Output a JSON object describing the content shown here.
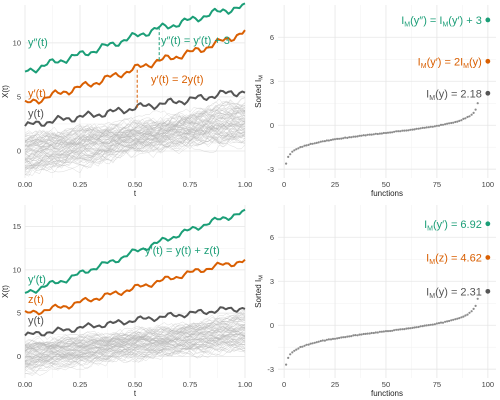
{
  "colors": {
    "green": "#1b9e77",
    "orange": "#d95f02",
    "dark": "#555555",
    "gray_curves": "#b5b5b5",
    "sorted_points": "#8c8c8c"
  },
  "chart_data": [
    {
      "id": "top-left",
      "type": "line",
      "xlabel": "t",
      "ylabel": "X(t)",
      "xlim": [
        0,
        1
      ],
      "ylim": [
        -2.5,
        13.5
      ],
      "x_ticks": [
        "0.00",
        "0.25",
        "0.50",
        "0.75",
        "1.00"
      ],
      "y_ticks": [
        "0",
        "5",
        "10"
      ],
      "grid": true,
      "series": [
        {
          "name": "y(t)",
          "color": "#555555",
          "points": [
            [
              0,
              2.3
            ],
            [
              0.1,
              2.7
            ],
            [
              0.2,
              3.0
            ],
            [
              0.3,
              3.3
            ],
            [
              0.4,
              3.6
            ],
            [
              0.5,
              4.0
            ],
            [
              0.6,
              4.3
            ],
            [
              0.7,
              4.6
            ],
            [
              0.8,
              4.9
            ],
            [
              0.9,
              5.3
            ],
            [
              1.0,
              5.5
            ]
          ]
        },
        {
          "name": "y′(t)",
          "color": "#d95f02",
          "points": [
            [
              0,
              4.3
            ],
            [
              0.1,
              5.0
            ],
            [
              0.2,
              5.6
            ],
            [
              0.3,
              6.2
            ],
            [
              0.4,
              6.9
            ],
            [
              0.5,
              7.6
            ],
            [
              0.6,
              8.3
            ],
            [
              0.7,
              8.8
            ],
            [
              0.8,
              9.4
            ],
            [
              0.9,
              10.2
            ],
            [
              1.0,
              11.0
            ]
          ]
        },
        {
          "name": "y″(t)",
          "color": "#1b9e77",
          "points": [
            [
              0,
              7.3
            ],
            [
              0.1,
              8.0
            ],
            [
              0.2,
              8.6
            ],
            [
              0.3,
              9.2
            ],
            [
              0.4,
              9.9
            ],
            [
              0.5,
              10.6
            ],
            [
              0.6,
              11.3
            ],
            [
              0.7,
              11.8
            ],
            [
              0.8,
              12.4
            ],
            [
              0.9,
              13.0
            ],
            [
              1.0,
              13.3
            ]
          ]
        }
      ],
      "background_curves": {
        "count": 80,
        "start_range": [
          -2.0,
          1.5
        ],
        "end_range": [
          1.0,
          4.5
        ]
      },
      "annotations": [
        {
          "label_parts": [
            "y″(t)"
          ],
          "color": "#1b9e77",
          "role": "series-label"
        },
        {
          "label_parts": [
            "y′(t)"
          ],
          "color": "#d95f02",
          "role": "series-label"
        },
        {
          "label_parts": [
            "y(t)"
          ],
          "color": "#555555",
          "role": "series-label"
        },
        {
          "label_parts": [
            "y″(t) = y′(t) + 3"
          ],
          "color": "#1b9e77",
          "role": "relation"
        },
        {
          "label_parts": [
            "y′(t) = 2y(t)"
          ],
          "color": "#d95f02",
          "role": "relation"
        }
      ],
      "dashed_markers": [
        {
          "x": 0.61,
          "y_from": 8.4,
          "y_to": 11.4,
          "color": "#1b9e77"
        },
        {
          "x": 0.51,
          "y_from": 4.0,
          "y_to": 7.6,
          "color": "#d95f02"
        }
      ]
    },
    {
      "id": "top-right",
      "type": "scatter",
      "xlabel": "functions",
      "ylabel": "Sorted I_M",
      "xlim": [
        -3,
        104
      ],
      "ylim": [
        -3.6,
        8.2
      ],
      "x_ticks": [
        "0",
        "25",
        "50",
        "75",
        "100"
      ],
      "y_ticks": [
        "-3",
        "0",
        "3",
        "6"
      ],
      "grid": true,
      "sorted_curve": {
        "n": 95,
        "min": -2.6,
        "max": 1.5
      },
      "highlighted_points": [
        {
          "x": 100,
          "y": 7.18,
          "color": "#1b9e77",
          "label_parts": [
            "I",
            "M",
            "(y″) = I",
            "M",
            "(y′) + 3"
          ]
        },
        {
          "x": 100,
          "y": 4.36,
          "color": "#d95f02",
          "label_parts": [
            "I",
            "M",
            "(y′) = 2I",
            "M",
            "(y)"
          ]
        },
        {
          "x": 100,
          "y": 2.18,
          "color": "#555555",
          "label_parts": [
            "I",
            "M",
            "(y) = 2.18"
          ]
        }
      ]
    },
    {
      "id": "bottom-left",
      "type": "line",
      "xlabel": "t",
      "ylabel": "X(t)",
      "xlim": [
        0,
        1
      ],
      "ylim": [
        -2.5,
        17.5
      ],
      "x_ticks": [
        "0.00",
        "0.25",
        "0.50",
        "0.75",
        "1.00"
      ],
      "y_ticks": [
        "0",
        "5",
        "10",
        "15"
      ],
      "grid": true,
      "series": [
        {
          "name": "y(t)",
          "color": "#555555",
          "points": [
            [
              0,
              2.4
            ],
            [
              0.1,
              2.8
            ],
            [
              0.2,
              3.1
            ],
            [
              0.3,
              3.5
            ],
            [
              0.4,
              3.8
            ],
            [
              0.5,
              4.2
            ],
            [
              0.6,
              4.5
            ],
            [
              0.7,
              4.8
            ],
            [
              0.8,
              5.1
            ],
            [
              0.9,
              5.4
            ],
            [
              1.0,
              5.6
            ]
          ]
        },
        {
          "name": "z(t)",
          "color": "#d95f02",
          "points": [
            [
              0,
              4.9
            ],
            [
              0.1,
              5.4
            ],
            [
              0.2,
              5.9
            ],
            [
              0.3,
              6.6
            ],
            [
              0.4,
              7.2
            ],
            [
              0.5,
              7.9
            ],
            [
              0.6,
              8.6
            ],
            [
              0.7,
              9.3
            ],
            [
              0.8,
              10.0
            ],
            [
              0.9,
              10.6
            ],
            [
              1.0,
              11.0
            ]
          ]
        },
        {
          "name": "y′(t)",
          "color": "#1b9e77",
          "points": [
            [
              0,
              7.3
            ],
            [
              0.1,
              8.2
            ],
            [
              0.2,
              9.0
            ],
            [
              0.3,
              10.1
            ],
            [
              0.4,
              11.0
            ],
            [
              0.5,
              12.1
            ],
            [
              0.6,
              13.1
            ],
            [
              0.7,
              14.1
            ],
            [
              0.8,
              15.1
            ],
            [
              0.9,
              16.0
            ],
            [
              1.0,
              16.6
            ]
          ]
        }
      ],
      "background_curves": {
        "count": 80,
        "start_range": [
          -1.8,
          1.5
        ],
        "end_range": [
          1.0,
          5.0
        ]
      },
      "annotations": [
        {
          "label_parts": [
            "y′(t)"
          ],
          "color": "#1b9e77",
          "role": "series-label"
        },
        {
          "label_parts": [
            "z(t)"
          ],
          "color": "#d95f02",
          "role": "series-label"
        },
        {
          "label_parts": [
            "y(t)"
          ],
          "color": "#555555",
          "role": "series-label"
        },
        {
          "label_parts": [
            "y′(t) = y(t) + z(t)"
          ],
          "color": "#1b9e77",
          "role": "relation"
        }
      ]
    },
    {
      "id": "bottom-right",
      "type": "scatter",
      "xlabel": "functions",
      "ylabel": "Sorted I_M",
      "xlim": [
        -3,
        104
      ],
      "ylim": [
        -3.6,
        8.2
      ],
      "x_ticks": [
        "0",
        "25",
        "50",
        "75",
        "100"
      ],
      "y_ticks": [
        "-3",
        "0",
        "3",
        "6"
      ],
      "grid": true,
      "sorted_curve": {
        "n": 95,
        "min": -2.7,
        "max": 1.8
      },
      "highlighted_points": [
        {
          "x": 100,
          "y": 6.92,
          "color": "#1b9e77",
          "label_parts": [
            "I",
            "M",
            "(y′) = 6.92"
          ]
        },
        {
          "x": 100,
          "y": 4.62,
          "color": "#d95f02",
          "label_parts": [
            "I",
            "M",
            "(z) = 4.62"
          ]
        },
        {
          "x": 100,
          "y": 2.31,
          "color": "#555555",
          "label_parts": [
            "I",
            "M",
            "(y) = 2.31"
          ]
        }
      ]
    }
  ]
}
